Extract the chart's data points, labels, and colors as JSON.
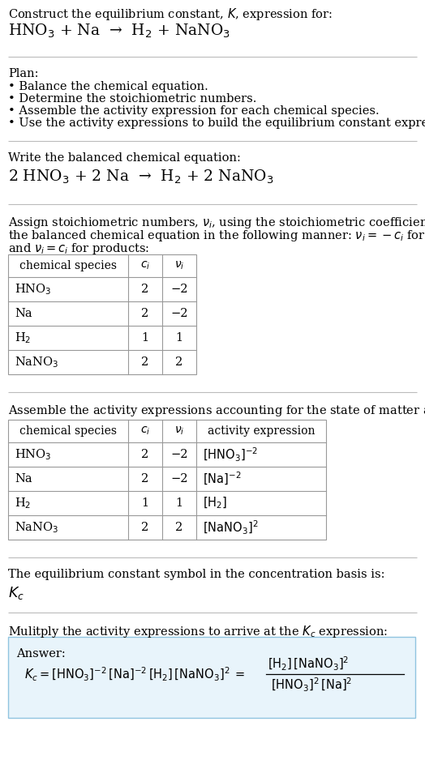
{
  "title_line1": "Construct the equilibrium constant, $K$, expression for:",
  "title_line2": "HNO$_3$ + Na  →  H$_2$ + NaNO$_3$",
  "plan_header": "Plan:",
  "plan_items": [
    "• Balance the chemical equation.",
    "• Determine the stoichiometric numbers.",
    "• Assemble the activity expression for each chemical species.",
    "• Use the activity expressions to build the equilibrium constant expression."
  ],
  "balanced_header": "Write the balanced chemical equation:",
  "balanced_eq": "2 HNO$_3$ + 2 Na  →  H$_2$ + 2 NaNO$_3$",
  "stoich_header1": "Assign stoichiometric numbers, $\\nu_i$, using the stoichiometric coefficients, $c_i$, from",
  "stoich_header2": "the balanced chemical equation in the following manner: $\\nu_i = -c_i$ for reactants",
  "stoich_header3": "and $\\nu_i = c_i$ for products:",
  "table1_headers": [
    "chemical species",
    "$c_i$",
    "$\\nu_i$"
  ],
  "table1_rows": [
    [
      "HNO$_3$",
      "2",
      "−2"
    ],
    [
      "Na",
      "2",
      "−2"
    ],
    [
      "H$_2$",
      "1",
      "1"
    ],
    [
      "NaNO$_3$",
      "2",
      "2"
    ]
  ],
  "activity_header": "Assemble the activity expressions accounting for the state of matter and $\\nu_i$:",
  "table2_headers": [
    "chemical species",
    "$c_i$",
    "$\\nu_i$",
    "activity expression"
  ],
  "table2_rows": [
    [
      "HNO$_3$",
      "2",
      "−2",
      "$[\\mathrm{HNO_3}]^{-2}$"
    ],
    [
      "Na",
      "2",
      "−2",
      "$[\\mathrm{Na}]^{-2}$"
    ],
    [
      "H$_2$",
      "1",
      "1",
      "$[\\mathrm{H_2}]$"
    ],
    [
      "NaNO$_3$",
      "2",
      "2",
      "$[\\mathrm{NaNO_3}]^2$"
    ]
  ],
  "kc_header": "The equilibrium constant symbol in the concentration basis is:",
  "kc_symbol": "$K_c$",
  "multiply_header": "Mulitply the activity expressions to arrive at the $K_c$ expression:",
  "answer_label": "Answer:",
  "bg_color": "#ffffff",
  "answer_box_color": "#e8f4fb",
  "answer_box_border": "#90c4e0",
  "text_color": "#000000",
  "font_size": 10.5
}
